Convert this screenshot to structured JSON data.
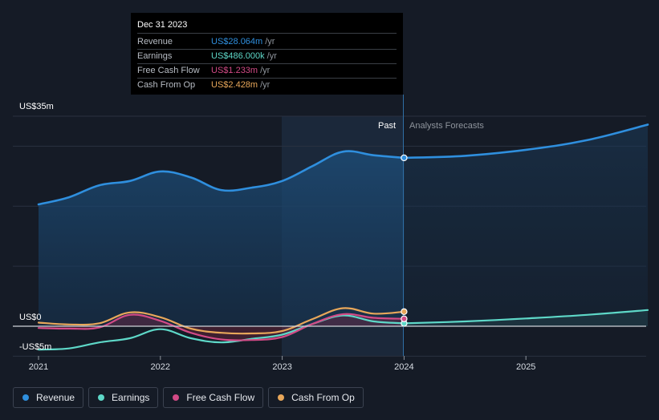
{
  "chart_data": {
    "type": "area",
    "y_axis_labels": {
      "top": "US$35m",
      "zero": "US$0",
      "bottom": "-US$5m"
    },
    "ylim": [
      -5,
      35
    ],
    "x_ticks": [
      "2021",
      "2022",
      "2023",
      "2024",
      "2025"
    ],
    "past_label": "Past",
    "forecast_label": "Analysts Forecasts",
    "series": [
      {
        "name": "Revenue",
        "color": "#2f8fde",
        "x": [
          2021.0,
          2021.25,
          2021.5,
          2021.75,
          2022.0,
          2022.25,
          2022.5,
          2022.75,
          2023.0,
          2023.25,
          2023.5,
          2023.75,
          2024.0
        ],
        "values": [
          20.3,
          21.5,
          23.5,
          24.2,
          25.8,
          24.8,
          22.7,
          23.1,
          24.2,
          26.7,
          29.1,
          28.5,
          28.064
        ]
      },
      {
        "name": "Revenue forecast",
        "color": "#2f8fde",
        "forecast": true,
        "x": [
          2024.0,
          2024.5,
          2025.0,
          2025.5,
          2026.0
        ],
        "values": [
          28.064,
          28.4,
          29.4,
          31.0,
          33.6
        ]
      },
      {
        "name": "Earnings",
        "color": "#5ed8c8",
        "x": [
          2021.0,
          2021.25,
          2021.5,
          2021.75,
          2022.0,
          2022.25,
          2022.5,
          2022.75,
          2023.0,
          2023.25,
          2023.5,
          2023.75,
          2024.0
        ],
        "values": [
          -3.9,
          -3.7,
          -2.7,
          -2.0,
          -0.5,
          -2.0,
          -2.7,
          -2.1,
          -1.4,
          0.4,
          1.8,
          0.8,
          0.486
        ]
      },
      {
        "name": "Earnings forecast",
        "color": "#5ed8c8",
        "forecast": true,
        "x": [
          2024.0,
          2024.5,
          2025.0,
          2025.5,
          2026.0
        ],
        "values": [
          0.486,
          0.8,
          1.3,
          1.9,
          2.7
        ]
      },
      {
        "name": "Free Cash Flow",
        "color": "#d24a86",
        "x": [
          2021.0,
          2021.25,
          2021.5,
          2021.75,
          2022.0,
          2022.25,
          2022.5,
          2022.75,
          2023.0,
          2023.25,
          2023.5,
          2023.75,
          2024.0
        ],
        "values": [
          -0.3,
          -0.4,
          -0.2,
          1.9,
          0.9,
          -1.1,
          -2.2,
          -2.3,
          -1.8,
          0.4,
          2.0,
          1.4,
          1.233
        ]
      },
      {
        "name": "Cash From Op",
        "color": "#e8a75a",
        "x": [
          2021.0,
          2021.25,
          2021.5,
          2021.75,
          2022.0,
          2022.25,
          2022.5,
          2022.75,
          2023.0,
          2023.25,
          2023.5,
          2023.75,
          2024.0
        ],
        "values": [
          0.6,
          0.3,
          0.5,
          2.3,
          1.5,
          -0.4,
          -1.1,
          -1.2,
          -0.8,
          1.2,
          3.0,
          2.1,
          2.428
        ]
      }
    ],
    "legend_position": "bottom-left",
    "grid": true
  },
  "tooltip": {
    "date": "Dec 31 2023",
    "rows": [
      {
        "label": "Revenue",
        "value": "US$28.064m",
        "unit": "/yr",
        "color": "#2f8fde"
      },
      {
        "label": "Earnings",
        "value": "US$486.000k",
        "unit": "/yr",
        "color": "#5ed8c8"
      },
      {
        "label": "Free Cash Flow",
        "value": "US$1.233m",
        "unit": "/yr",
        "color": "#d24a86"
      },
      {
        "label": "Cash From Op",
        "value": "US$2.428m",
        "unit": "/yr",
        "color": "#e8a75a"
      }
    ]
  },
  "legend": [
    {
      "label": "Revenue",
      "color": "#2f8fde"
    },
    {
      "label": "Earnings",
      "color": "#5ed8c8"
    },
    {
      "label": "Free Cash Flow",
      "color": "#d24a86"
    },
    {
      "label": "Cash From Op",
      "color": "#e8a75a"
    }
  ]
}
